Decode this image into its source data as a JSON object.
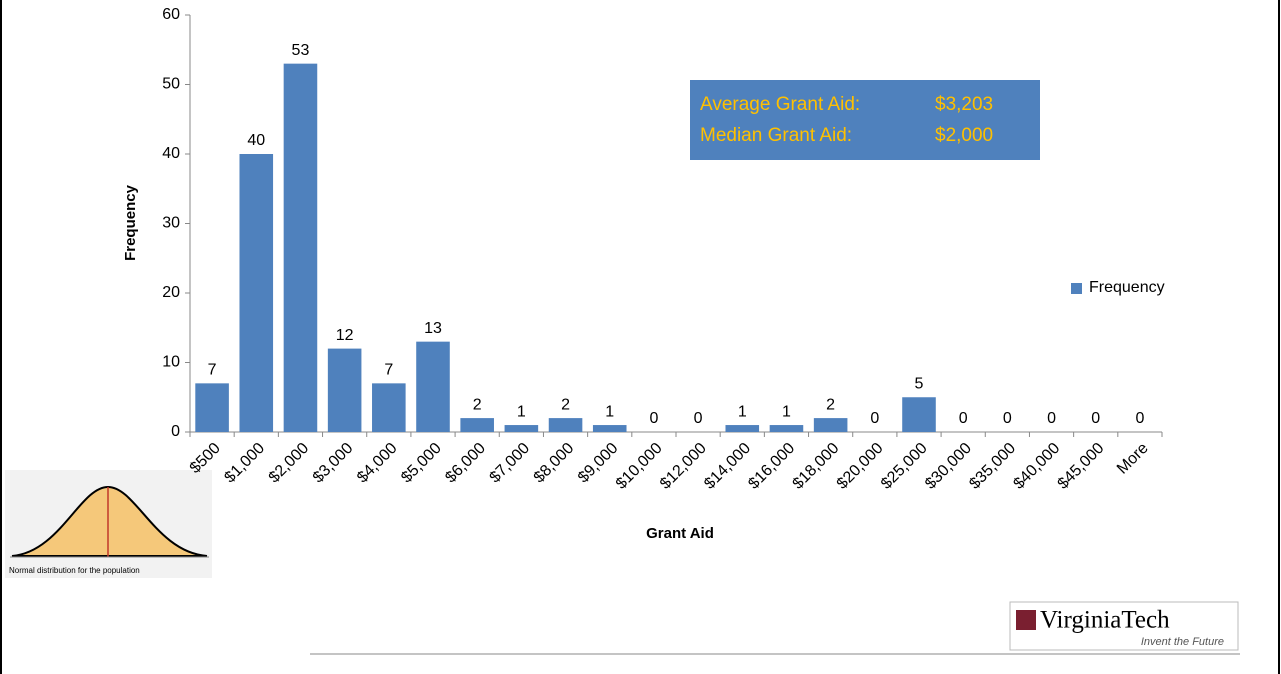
{
  "chart_data": {
    "type": "bar",
    "x_label": "Grant Aid",
    "y_label": "Frequency",
    "categories": [
      "$500",
      "$1,000",
      "$2,000",
      "$3,000",
      "$4,000",
      "$5,000",
      "$6,000",
      "$7,000",
      "$8,000",
      "$9,000",
      "$10,000",
      "$12,000",
      "$14,000",
      "$16,000",
      "$18,000",
      "$20,000",
      "$25,000",
      "$30,000",
      "$35,000",
      "$40,000",
      "$45,000",
      "More"
    ],
    "series": [
      {
        "name": "Frequency",
        "color": "#4f81bd",
        "values": [
          7,
          40,
          53,
          12,
          7,
          13,
          2,
          1,
          2,
          1,
          0,
          0,
          1,
          1,
          2,
          0,
          5,
          0,
          0,
          0,
          0,
          0
        ]
      }
    ],
    "ylim": [
      0,
      60
    ],
    "yticks": [
      0,
      10,
      20,
      30,
      40,
      50,
      60
    ],
    "legend": "right",
    "data_labels": true,
    "annotations": [
      {
        "label": "Average Grant Aid:",
        "value": "$3,203"
      },
      {
        "label": "Median Grant Aid:",
        "value": "$2,000"
      }
    ]
  },
  "inset": {
    "caption": "Normal distribution for the population"
  },
  "logo": {
    "name": "VirginiaTech",
    "tagline": "Invent the Future"
  }
}
